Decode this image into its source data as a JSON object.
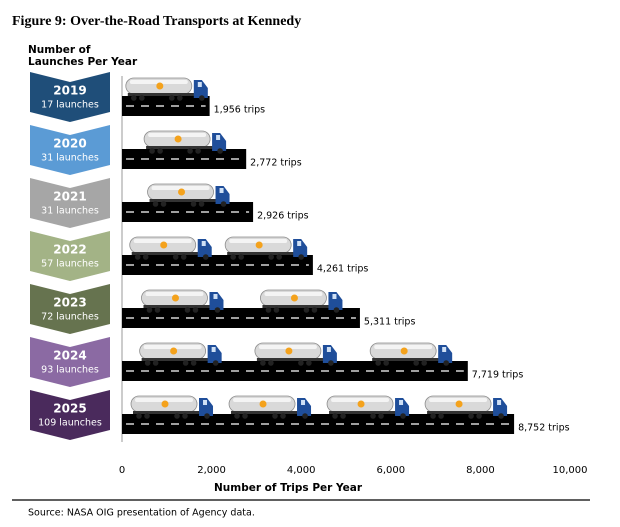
{
  "chart_data": {
    "type": "bar",
    "title": "Figure 9: Over-the-Road Transports at Kennedy",
    "side_header": "Number of Launches Per Year",
    "categories": [
      "2019",
      "2020",
      "2021",
      "2022",
      "2023",
      "2024",
      "2025"
    ],
    "launches": [
      "17 launches",
      "31 launches",
      "31 launches",
      "57 launches",
      "72 launches",
      "93 launches",
      "109 launches"
    ],
    "colors": [
      "#1f4e79",
      "#5b9bd5",
      "#a6a6a6",
      "#a3b386",
      "#66734f",
      "#8b6aa3",
      "#4a2a5c"
    ],
    "values": [
      1956,
      2772,
      2926,
      4261,
      5311,
      7719,
      8752
    ],
    "value_labels": [
      "1,956 trips",
      "2,772 trips",
      "2,926 trips",
      "4,261 trips",
      "5,311 trips",
      "7,719 trips",
      "8,752 trips"
    ],
    "color": "#000000",
    "xlim": [
      0,
      10000
    ],
    "xticks": [
      0,
      {
        "value": 2000,
        "label": "2,000"
      },
      {
        "value": 4000,
        "label": "4,000"
      },
      {
        "value": 6000,
        "label": "6,000"
      },
      {
        "value": 8000,
        "label": "8,000"
      },
      {
        "value": 10000,
        "label": "10,000"
      }
    ],
    "x_label": "Number of Trips Per Year",
    "source": "Source: NASA OIG presentation of Agency data."
  }
}
